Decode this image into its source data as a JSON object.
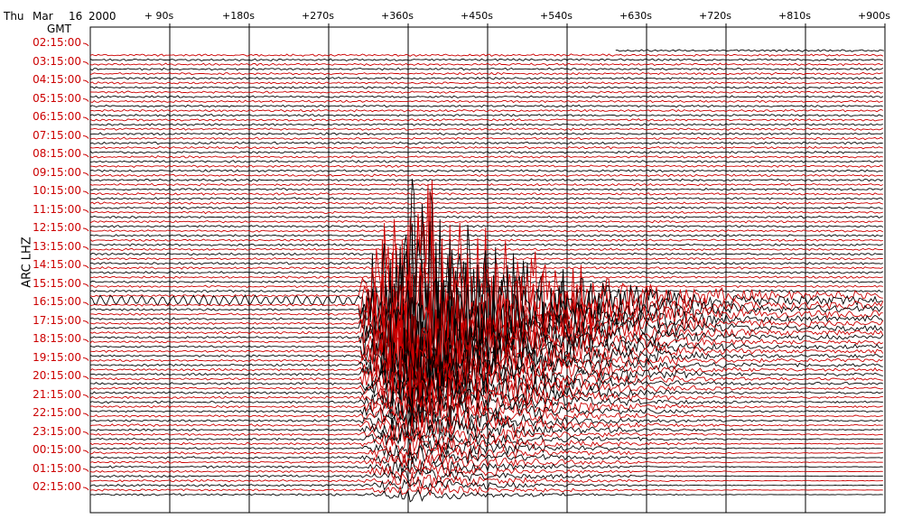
{
  "header": {
    "day": "Thu",
    "month": "Mar",
    "date": "16",
    "year": "2000",
    "tz": "GMT"
  },
  "chart_data": {
    "type": "line",
    "title": "",
    "ylabel": "ARC  LHZ",
    "x_tick_labels": [
      "+ 90s",
      "+180s",
      "+270s",
      "+360s",
      "+450s",
      "+540s",
      "+630s",
      "+720s",
      "+810s",
      "+900s"
    ],
    "x_ticks": [
      90,
      180,
      270,
      360,
      450,
      540,
      630,
      720,
      810,
      900
    ],
    "xlim": [
      0,
      900
    ],
    "row_labels": [
      "02:15:00",
      "03:15:00",
      "04:15:00",
      "05:15:00",
      "06:15:00",
      "07:15:00",
      "08:15:00",
      "09:15:00",
      "10:15:00",
      "11:15:00",
      "12:15:00",
      "13:15:00",
      "14:15:00",
      "15:15:00",
      "16:15:00",
      "17:15:00",
      "18:15:00",
      "19:15:00",
      "20:15:00",
      "21:15:00",
      "22:15:00",
      "23:15:00",
      "00:15:00",
      "01:15:00",
      "02:15:00"
    ],
    "traces_per_hour": 4,
    "trace_colors": [
      "#000000",
      "#cc0000"
    ],
    "event": {
      "onset_s": 305,
      "peak_s": 360,
      "coda_end_s": 900,
      "start_row": 13
    }
  }
}
